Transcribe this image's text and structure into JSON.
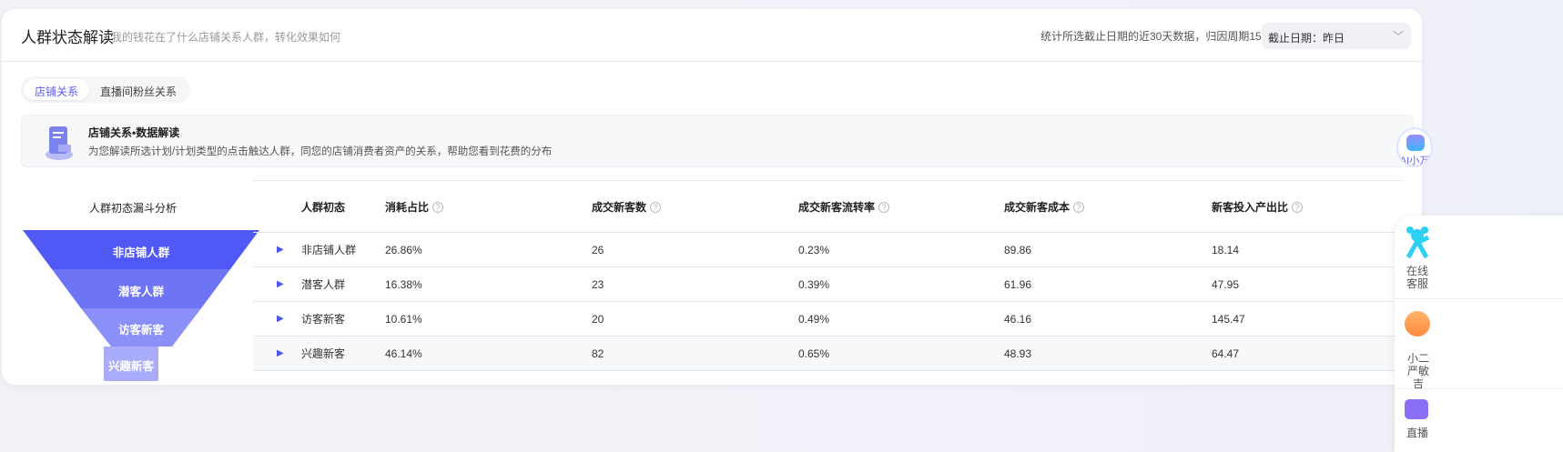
{
  "header": {
    "title": "人群状态解读",
    "subtitle": "我的钱花在了什么店铺关系人群，转化效果如何",
    "note": "统计所选截止日期的近30天数据，归因周期15天",
    "date_select": "截止日期：昨日"
  },
  "tabs": [
    {
      "label": "店铺关系",
      "active": true
    },
    {
      "label": "直播间粉丝关系",
      "active": false
    }
  ],
  "info": {
    "title": "店铺关系•数据解读",
    "desc": "为您解读所选计划/计划类型的点击触达人群，同您的店铺消费者资产的关系，帮助您看到花费的分布"
  },
  "funnel": {
    "title": "人群初态漏斗分析",
    "tiers": [
      {
        "label": "非店铺人群",
        "color": "#5058f5"
      },
      {
        "label": "潜客人群",
        "color": "#6e74f6"
      },
      {
        "label": "访客新客",
        "color": "#8b90f8"
      },
      {
        "label": "兴趣新客",
        "color": "#a9acfa"
      }
    ]
  },
  "table": {
    "headers": [
      "人群初态",
      "消耗占比",
      "成交新客数",
      "成交新客流转率",
      "成交新客成本",
      "新客投入产出比"
    ],
    "rows": [
      [
        "非店铺人群",
        "26.86%",
        "26",
        "0.23%",
        "89.86",
        "18.14"
      ],
      [
        "潜客人群",
        "16.38%",
        "23",
        "0.39%",
        "61.96",
        "47.95"
      ],
      [
        "访客新客",
        "10.61%",
        "20",
        "0.49%",
        "46.16",
        "145.47"
      ],
      [
        "兴趣新客",
        "46.14%",
        "82",
        "0.65%",
        "48.93",
        "64.47"
      ]
    ]
  },
  "float": {
    "ai": "AI小万",
    "service": "在线客服",
    "xiaoer": "小二严敏吉",
    "live": "直播"
  }
}
